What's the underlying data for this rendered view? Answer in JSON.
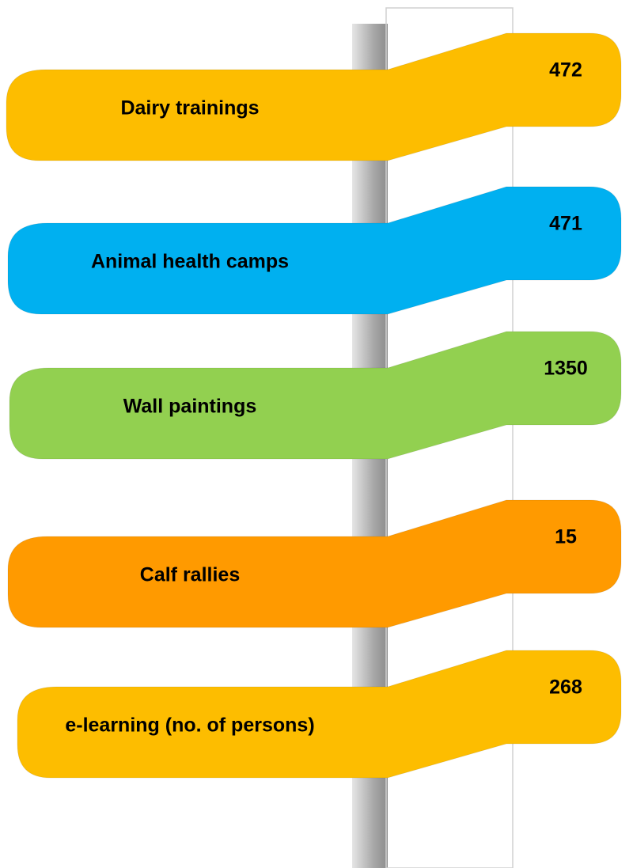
{
  "items": [
    {
      "label": "Dairy trainings",
      "value": "472",
      "color": "#fdbd00"
    },
    {
      "label": "Animal health camps",
      "value": "471",
      "color": "#00b0f0"
    },
    {
      "label": "Wall paintings",
      "value": "1350",
      "color": "#92d050"
    },
    {
      "label": "Calf rallies",
      "value": "15",
      "color": "#ff9a00"
    },
    {
      "label": "e-learning (no. of persons)",
      "value": "268",
      "color": "#fdbd00"
    }
  ]
}
